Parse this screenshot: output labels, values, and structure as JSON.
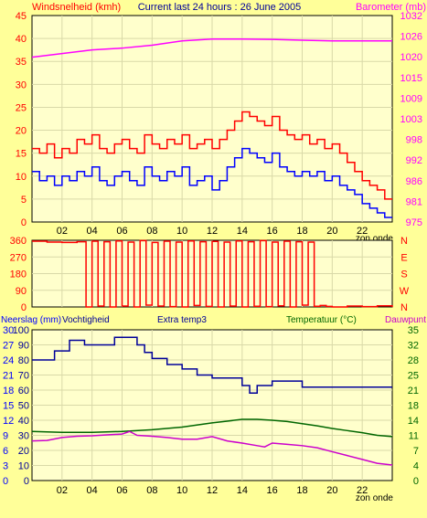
{
  "colors": {
    "background": "#ffff99",
    "plot_bg": "#ffffcc",
    "grid": "#d9d9a8",
    "gust": "#ff0000",
    "wind": "#0000ff",
    "barometer": "#ff00ff",
    "humidity": "#000099",
    "temperature": "#006600",
    "dewpoint": "#cc00cc"
  },
  "chart_data": [
    {
      "type": "line",
      "title": "Current last 24 hours : 26 June 2005",
      "ylabel": "Windsnelheid (kmh)",
      "ylabel_right": "Barometer (mb)",
      "x_ticks": [
        "02",
        "04",
        "06",
        "08",
        "10",
        "12",
        "14",
        "16",
        "18",
        "20",
        "22"
      ],
      "x_end_label": "zon onde",
      "xlim": [
        0,
        24
      ],
      "ylim": [
        0,
        45
      ],
      "y_ticks": [
        0,
        5,
        10,
        15,
        20,
        25,
        30,
        35,
        40,
        45
      ],
      "y_ticks_right": [
        975,
        981,
        986,
        992,
        998,
        1003,
        1009,
        1015,
        1020,
        1026,
        1032
      ],
      "grid": true,
      "series": [
        {
          "role": "gust",
          "x": [
            0,
            0.5,
            1,
            1.5,
            2,
            2.5,
            3,
            3.5,
            4,
            4.5,
            5,
            5.5,
            6,
            6.5,
            7,
            7.5,
            8,
            8.5,
            9,
            9.5,
            10,
            10.5,
            11,
            11.5,
            12,
            12.5,
            13,
            13.5,
            14,
            14.5,
            15,
            15.5,
            16,
            16.5,
            17,
            17.5,
            18,
            18.5,
            19,
            19.5,
            20,
            20.5,
            21,
            21.5,
            22,
            22.5,
            23,
            23.5
          ],
          "values": [
            16,
            15,
            17,
            14,
            16,
            15,
            18,
            17,
            19,
            16,
            15,
            17,
            18,
            16,
            15,
            19,
            17,
            16,
            18,
            17,
            19,
            16,
            17,
            18,
            16,
            18,
            20,
            22,
            24,
            23,
            22,
            21,
            23,
            20,
            19,
            18,
            19,
            17,
            18,
            16,
            17,
            15,
            13,
            11,
            9,
            8,
            7,
            5
          ]
        },
        {
          "role": "wind",
          "x": [
            0,
            0.5,
            1,
            1.5,
            2,
            2.5,
            3,
            3.5,
            4,
            4.5,
            5,
            5.5,
            6,
            6.5,
            7,
            7.5,
            8,
            8.5,
            9,
            9.5,
            10,
            10.5,
            11,
            11.5,
            12,
            12.5,
            13,
            13.5,
            14,
            14.5,
            15,
            15.5,
            16,
            16.5,
            17,
            17.5,
            18,
            18.5,
            19,
            19.5,
            20,
            20.5,
            21,
            21.5,
            22,
            22.5,
            23,
            23.5
          ],
          "values": [
            11,
            9,
            10,
            8,
            10,
            9,
            11,
            10,
            12,
            9,
            8,
            10,
            11,
            9,
            8,
            12,
            10,
            9,
            11,
            10,
            12,
            8,
            9,
            10,
            7,
            9,
            12,
            14,
            16,
            15,
            14,
            13,
            15,
            12,
            11,
            10,
            11,
            10,
            11,
            9,
            10,
            8,
            7,
            6,
            4,
            3,
            2,
            1
          ]
        },
        {
          "role": "barometer",
          "x": [
            0,
            2,
            4,
            6,
            8,
            10,
            12,
            14,
            16,
            18,
            20,
            22,
            24
          ],
          "values": [
            1020.5,
            1021.5,
            1022.5,
            1023,
            1023.8,
            1025,
            1025.5,
            1025.5,
            1025.4,
            1025.2,
            1025,
            1025,
            1025
          ]
        }
      ]
    },
    {
      "type": "line",
      "y_ticks": [
        0,
        90,
        180,
        270,
        360
      ],
      "ylim": [
        0,
        360
      ],
      "y_ticks_right": [
        "N",
        "W",
        "S",
        "E",
        "N"
      ],
      "x_end_label": "zon onde",
      "xlim": [
        0,
        24
      ],
      "grid": true,
      "series": [
        {
          "role": "direction",
          "x": [
            0,
            1,
            2,
            3,
            3.6,
            4,
            4.4,
            4.8,
            5.2,
            5.6,
            6,
            6.4,
            6.8,
            7.2,
            7.6,
            8,
            8.4,
            8.8,
            9.2,
            9.6,
            10,
            10.4,
            10.8,
            11.2,
            11.6,
            12,
            12.4,
            12.8,
            13.2,
            13.6,
            14,
            14.4,
            14.8,
            15.2,
            15.6,
            16,
            16.4,
            16.8,
            17.2,
            17.6,
            18,
            18.4,
            18.8,
            19.2,
            19.6,
            20,
            21,
            22,
            23,
            24
          ],
          "values": [
            355,
            350,
            348,
            352,
            0,
            355,
            5,
            352,
            0,
            356,
            5,
            350,
            0,
            358,
            10,
            348,
            5,
            355,
            2,
            350,
            0,
            356,
            8,
            352,
            3,
            354,
            0,
            350,
            5,
            356,
            0,
            352,
            4,
            358,
            2,
            350,
            6,
            355,
            0,
            352,
            10,
            350,
            4,
            8,
            3,
            0,
            5,
            2,
            6,
            0
          ]
        }
      ]
    },
    {
      "type": "line",
      "labels_top": [
        "Neerslag (mm)",
        "Vochtigheid",
        "Extra temp3",
        "Temperatuur (°C)",
        "Dauwpunt"
      ],
      "y_ticks_rain": [
        0,
        3,
        6,
        9,
        12,
        15,
        18,
        21,
        24,
        27,
        30
      ],
      "y_ticks_humidity": [
        0,
        10,
        20,
        30,
        40,
        50,
        60,
        70,
        80,
        90,
        100
      ],
      "y_ticks_right": [
        0,
        4,
        7,
        11,
        14,
        18,
        21,
        25,
        28,
        32,
        35
      ],
      "x_ticks": [
        "02",
        "04",
        "06",
        "08",
        "10",
        "12",
        "14",
        "16",
        "18",
        "20",
        "22"
      ],
      "x_end_label": "zon onde",
      "xlim": [
        0,
        24
      ],
      "ylim": [
        0,
        100
      ],
      "grid": true,
      "series": [
        {
          "role": "humidity",
          "x": [
            0,
            1,
            1.5,
            2,
            2.5,
            3,
            3.5,
            4,
            5,
            5.5,
            6,
            7,
            7.5,
            8,
            9,
            10,
            11,
            12,
            13,
            14,
            14.5,
            15,
            15.5,
            16,
            17,
            18,
            20,
            22,
            24
          ],
          "values": [
            80,
            80,
            86,
            86,
            93,
            93,
            90,
            90,
            90,
            95,
            95,
            90,
            85,
            81,
            77,
            74,
            70,
            68,
            68,
            63,
            58,
            63,
            63,
            66,
            66,
            62,
            62,
            62,
            62
          ]
        },
        {
          "role": "temperature",
          "x": [
            0,
            2,
            4,
            6,
            8,
            10,
            12,
            13,
            14,
            15,
            16,
            17,
            18,
            19,
            20,
            21,
            22,
            23,
            24
          ],
          "values": [
            11.4,
            11.2,
            11.2,
            11.4,
            11.8,
            12.4,
            13.4,
            13.8,
            14.2,
            14.2,
            14.0,
            13.7,
            13.2,
            12.7,
            12.1,
            11.6,
            11.1,
            10.5,
            10.2
          ]
        },
        {
          "role": "dewpoint",
          "x": [
            0,
            1,
            2,
            3,
            4,
            5,
            6,
            6.5,
            7,
            8,
            9,
            10,
            11,
            12,
            13,
            14,
            15,
            15.5,
            16,
            17,
            18,
            19,
            20,
            21,
            22,
            23,
            24
          ],
          "values": [
            9.2,
            9.3,
            10.0,
            10.3,
            10.4,
            10.6,
            10.8,
            11.4,
            10.5,
            10.3,
            10.0,
            9.6,
            9.6,
            10.2,
            9.2,
            8.7,
            8.1,
            7.8,
            8.7,
            8.4,
            8.1,
            7.6,
            6.7,
            5.8,
            4.9,
            4.0,
            3.6
          ]
        }
      ]
    }
  ]
}
